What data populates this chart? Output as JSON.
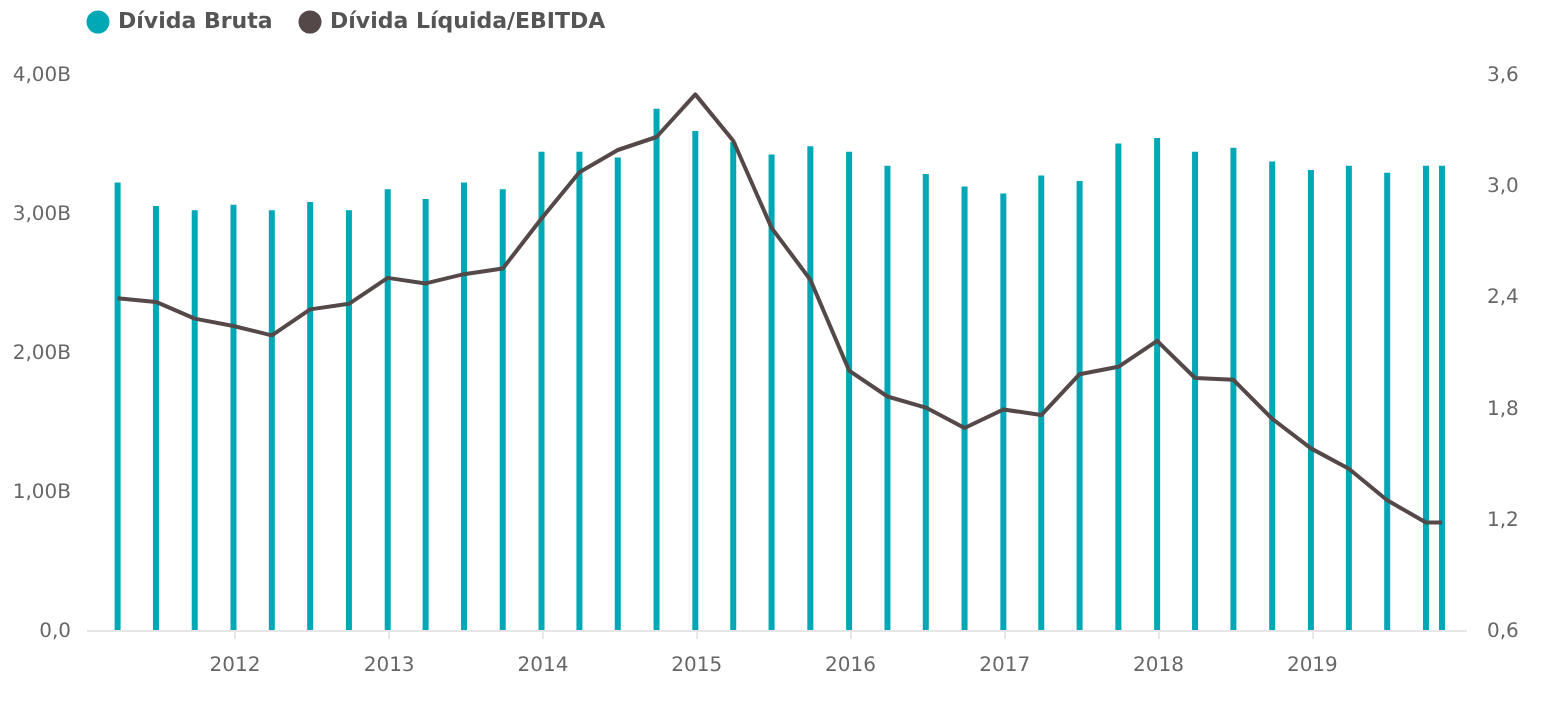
{
  "chart_data": {
    "type": "bar",
    "x": [
      "2011-03-31",
      "2011-06-30",
      "2011-09-30",
      "2011-12-31",
      "2012-03-31",
      "2012-06-30",
      "2012-09-30",
      "2012-12-31",
      "2013-03-31",
      "2013-06-30",
      "2013-09-30",
      "2013-12-31",
      "2014-03-31",
      "2014-06-30",
      "2014-09-30",
      "2014-12-31",
      "2015-03-31",
      "2015-06-30",
      "2015-09-30",
      "2015-12-31",
      "2016-03-31",
      "2016-06-30",
      "2016-09-30",
      "2016-12-31",
      "2017-03-31",
      "2017-06-30",
      "2017-09-30",
      "2017-12-31",
      "2018-03-31",
      "2018-06-30",
      "2018-09-30",
      "2018-12-31",
      "2019-03-31",
      "2019-06-30",
      "2019-09-30",
      "2019-11-07"
    ],
    "series": [
      {
        "name": "Dívida Bruta",
        "color": "#00a8b5",
        "values": [
          3.22,
          3.05,
          3.02,
          3.06,
          3.02,
          3.08,
          3.02,
          3.17,
          3.1,
          3.22,
          3.17,
          3.44,
          3.44,
          3.4,
          3.75,
          3.59,
          3.51,
          3.42,
          3.48,
          3.44,
          3.34,
          3.28,
          3.19,
          3.14,
          3.27,
          3.23,
          3.5,
          3.54,
          3.44,
          3.47,
          3.37,
          3.31,
          3.34,
          3.29,
          3.34,
          3.34
        ]
      },
      {
        "name": "Dívida Líquida/EBITDA",
        "type": "line",
        "axis": "y2",
        "color": "#554848",
        "values": [
          2.39,
          2.37,
          2.28,
          2.24,
          2.19,
          2.33,
          2.36,
          2.5,
          2.47,
          2.52,
          2.55,
          2.82,
          3.07,
          3.19,
          3.26,
          3.49,
          3.24,
          2.77,
          2.49,
          2.0,
          1.86,
          1.8,
          1.69,
          1.79,
          1.76,
          1.98,
          2.02,
          2.16,
          1.96,
          1.95,
          1.74,
          1.58,
          1.47,
          1.3,
          1.18,
          1.18
        ]
      }
    ],
    "xlim": [
      "2011-01-15",
      "2020-01-03"
    ],
    "xticks": [
      "2012",
      "2013",
      "2014",
      "2015",
      "2016",
      "2017",
      "2018",
      "2019"
    ],
    "ylim": [
      0,
      4
    ],
    "yticks": [
      {
        "value": 0,
        "label": "0,0"
      },
      {
        "value": 1,
        "label": "1,00B"
      },
      {
        "value": 2,
        "label": "2,00B"
      },
      {
        "value": 3,
        "label": "3,00B"
      },
      {
        "value": 4,
        "label": "4,00B"
      }
    ],
    "y2lim": [
      0.6,
      3.6
    ],
    "y2ticks": [
      {
        "value": 0.6,
        "label": "0,6"
      },
      {
        "value": 1.2,
        "label": "1,2"
      },
      {
        "value": 1.8,
        "label": "1,8"
      },
      {
        "value": 2.4,
        "label": "2,4"
      },
      {
        "value": 3.0,
        "label": "3,0"
      },
      {
        "value": 3.6,
        "label": "3,6"
      }
    ],
    "grid": false,
    "legend": "top"
  }
}
